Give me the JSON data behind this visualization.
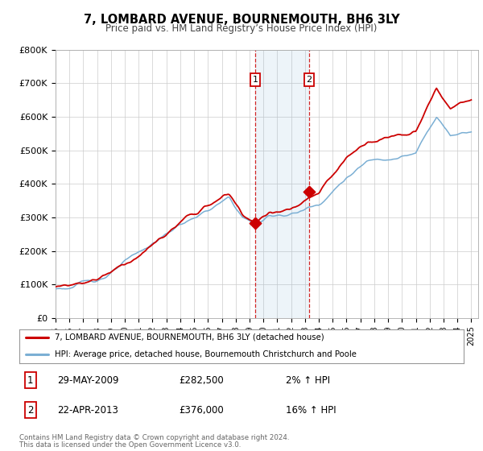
{
  "title": "7, LOMBARD AVENUE, BOURNEMOUTH, BH6 3LY",
  "subtitle": "Price paid vs. HM Land Registry’s House Price Index (HPI)",
  "ylim": [
    0,
    800000
  ],
  "yticks": [
    0,
    100000,
    200000,
    300000,
    400000,
    500000,
    600000,
    700000,
    800000
  ],
  "ytick_labels": [
    "£0",
    "£100K",
    "£200K",
    "£300K",
    "£400K",
    "£500K",
    "£600K",
    "£700K",
    "£800K"
  ],
  "xlim_start": 1995.0,
  "xlim_end": 2025.5,
  "xticks": [
    1995,
    1996,
    1997,
    1998,
    1999,
    2000,
    2001,
    2002,
    2003,
    2004,
    2005,
    2006,
    2007,
    2008,
    2009,
    2010,
    2011,
    2012,
    2013,
    2014,
    2015,
    2016,
    2017,
    2018,
    2019,
    2020,
    2021,
    2022,
    2023,
    2024,
    2025
  ],
  "sale1_date": 2009.41,
  "sale1_price": 282500,
  "sale2_date": 2013.3,
  "sale2_price": 376000,
  "shade_start": 2009.41,
  "shade_end": 2013.3,
  "property_color": "#cc0000",
  "hpi_color": "#7bafd4",
  "grid_color": "#cccccc",
  "background_color": "#ffffff",
  "legend1_text": "7, LOMBARD AVENUE, BOURNEMOUTH, BH6 3LY (detached house)",
  "legend2_text": "HPI: Average price, detached house, Bournemouth Christchurch and Poole",
  "table_row1": [
    "1",
    "29-MAY-2009",
    "£282,500",
    "2% ↑ HPI"
  ],
  "table_row2": [
    "2",
    "22-APR-2013",
    "£376,000",
    "16% ↑ HPI"
  ],
  "footnote1": "Contains HM Land Registry data © Crown copyright and database right 2024.",
  "footnote2": "This data is licensed under the Open Government Licence v3.0."
}
